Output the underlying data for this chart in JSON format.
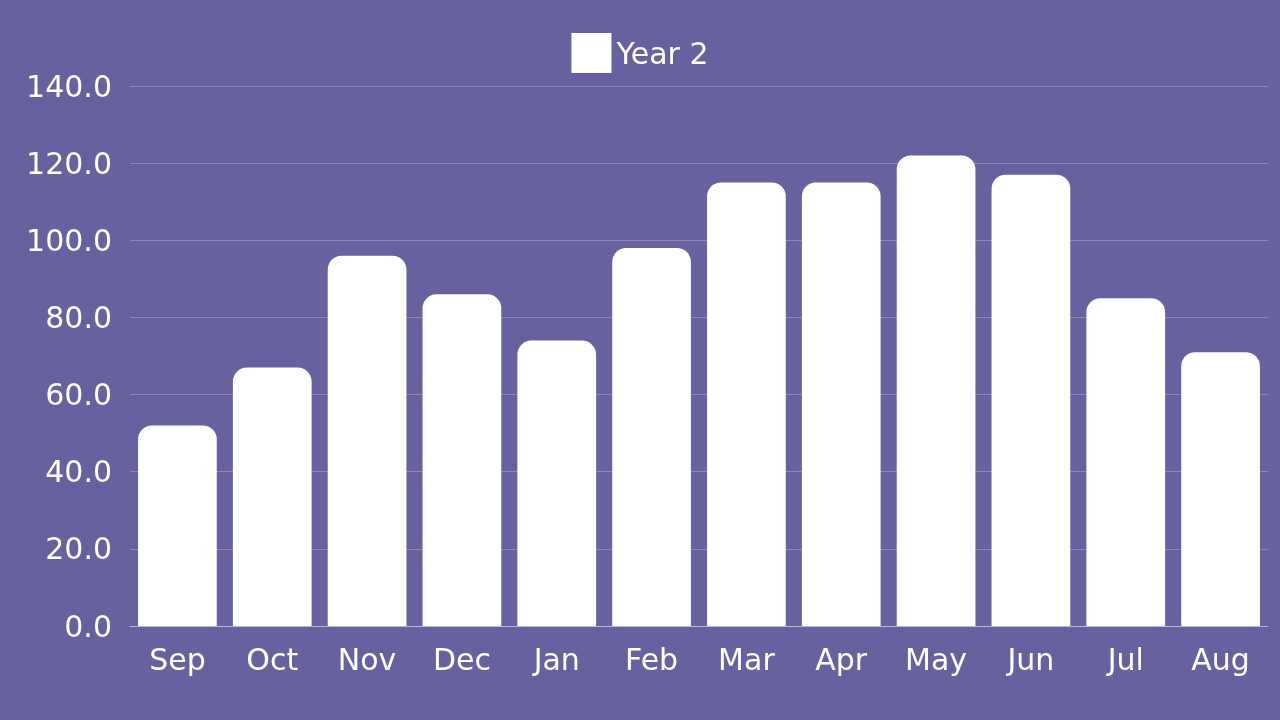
{
  "chart_data": {
    "type": "bar",
    "categories": [
      "Sep",
      "Oct",
      "Nov",
      "Dec",
      "Jan",
      "Feb",
      "Mar",
      "Apr",
      "May",
      "Jun",
      "Jul",
      "Aug"
    ],
    "series": [
      {
        "name": "Year 2",
        "color": "#ffffff",
        "values": [
          52,
          67,
          96,
          86,
          74,
          98,
          115,
          115,
          122,
          117,
          85,
          71
        ]
      }
    ],
    "ylim": [
      0,
      140
    ],
    "yticks": [
      {
        "value": 0,
        "label": "0.0"
      },
      {
        "value": 20,
        "label": "20.0"
      },
      {
        "value": 40,
        "label": "40.0"
      },
      {
        "value": 60,
        "label": "60.0"
      },
      {
        "value": 80,
        "label": "80.0"
      },
      {
        "value": 100,
        "label": "100.0"
      },
      {
        "value": 120,
        "label": "120.0"
      },
      {
        "value": 140,
        "label": "140.0"
      }
    ],
    "grid": "y",
    "legend": "top"
  }
}
